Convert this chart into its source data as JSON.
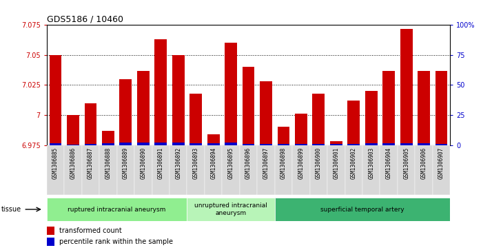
{
  "title": "GDS5186 / 10460",
  "samples": [
    "GSM1306885",
    "GSM1306886",
    "GSM1306887",
    "GSM1306888",
    "GSM1306889",
    "GSM1306890",
    "GSM1306891",
    "GSM1306892",
    "GSM1306893",
    "GSM1306894",
    "GSM1306895",
    "GSM1306896",
    "GSM1306897",
    "GSM1306898",
    "GSM1306899",
    "GSM1306900",
    "GSM1306901",
    "GSM1306902",
    "GSM1306903",
    "GSM1306904",
    "GSM1306905",
    "GSM1306906",
    "GSM1306907"
  ],
  "transformed_count": [
    7.05,
    7.0,
    7.01,
    6.987,
    7.03,
    7.037,
    7.063,
    7.05,
    7.018,
    6.984,
    7.06,
    7.04,
    7.028,
    6.99,
    7.001,
    7.018,
    6.978,
    7.012,
    7.02,
    7.037,
    7.072,
    7.037,
    7.037
  ],
  "percentile_rank": [
    12,
    3,
    5,
    10,
    15,
    15,
    15,
    14,
    12,
    12,
    14,
    7,
    6,
    5,
    5,
    7,
    5,
    8,
    10,
    12,
    12,
    10,
    8
  ],
  "groups": [
    {
      "label": "ruptured intracranial aneurysm",
      "start": 0,
      "end": 8,
      "color": "#90EE90"
    },
    {
      "label": "unruptured intracranial\naneurysm",
      "start": 8,
      "end": 13,
      "color": "#b8f4b8"
    },
    {
      "label": "superficial temporal artery",
      "start": 13,
      "end": 23,
      "color": "#3cb371"
    }
  ],
  "ylim": [
    6.975,
    7.075
  ],
  "yticks": [
    6.975,
    7.0,
    7.025,
    7.05,
    7.075
  ],
  "ytick_labels": [
    "6.975",
    "7",
    "7.025",
    "7.05",
    "7.075"
  ],
  "right_yticks": [
    0,
    25,
    50,
    75,
    100
  ],
  "right_ylabels": [
    "0",
    "25",
    "50",
    "75",
    "100%"
  ],
  "bar_color": "#CC0000",
  "percentile_color": "#0000CC",
  "bg_color": "#ffffff",
  "xtick_bg": "#d8d8d8",
  "left_axis_color": "#CC0000",
  "right_axis_color": "#0000CC",
  "pct_bar_scale": 0.13
}
